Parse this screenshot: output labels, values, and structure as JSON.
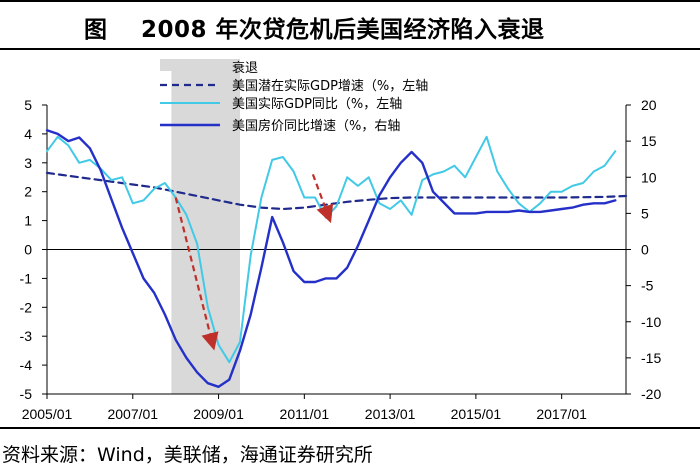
{
  "title": {
    "figure_label": "图",
    "text": "2008 年次贷危机后美国经济陷入衰退"
  },
  "source_note": "资料来源：Wind，美联储，海通证券研究所",
  "colors": {
    "potential_gdp": "#1f2a8c",
    "real_gdp": "#41c9e6",
    "house_price": "#2430c8",
    "recession_shade": "#d9d9d9",
    "arrows": "#c0302a"
  },
  "chart_data": {
    "type": "line",
    "title": "2008 年次贷危机后美国经济陷入衰退",
    "x_range": [
      2005.0,
      2018.5
    ],
    "x_ticks": [
      {
        "value": 2005.0,
        "label": "2005/01"
      },
      {
        "value": 2007.0,
        "label": "2007/01"
      },
      {
        "value": 2009.0,
        "label": "2009/01"
      },
      {
        "value": 2011.0,
        "label": "2011/01"
      },
      {
        "value": 2013.0,
        "label": "2013/01"
      },
      {
        "value": 2015.0,
        "label": "2015/01"
      },
      {
        "value": 2017.0,
        "label": "2017/01"
      }
    ],
    "y_left": {
      "min": -5,
      "max": 5,
      "ticks": [
        "5",
        "4",
        "3",
        "2",
        "1",
        "0",
        "-1",
        "-2",
        "-3",
        "-4",
        "-5"
      ]
    },
    "y_right": {
      "min": -20,
      "max": 20,
      "ticks": [
        "20",
        "15",
        "10",
        "5",
        "0",
        "-5",
        "-10",
        "-15",
        "-20"
      ]
    },
    "recession": {
      "label": "衰退",
      "start": 2007.9,
      "end": 2009.5
    },
    "legend": [
      "衰退",
      "美国潜在实际GDP增速（%，左轴",
      "美国实际GDP同比（%，左轴",
      "美国房价同比增速（%，右轴"
    ],
    "series": [
      {
        "name": "美国潜在实际GDP增速（%，左轴",
        "axis": "left",
        "style": "dashed",
        "x": [
          2005.0,
          2005.5,
          2006.0,
          2006.5,
          2007.0,
          2007.5,
          2008.0,
          2008.5,
          2009.0,
          2009.5,
          2010.0,
          2010.5,
          2011.0,
          2011.5,
          2012.0,
          2012.5,
          2013.0,
          2013.5,
          2014.0,
          2015.0,
          2016.0,
          2017.0,
          2018.0,
          2018.5
        ],
        "values": [
          2.65,
          2.55,
          2.45,
          2.35,
          2.25,
          2.15,
          2.0,
          1.85,
          1.7,
          1.55,
          1.45,
          1.4,
          1.45,
          1.55,
          1.65,
          1.72,
          1.78,
          1.8,
          1.8,
          1.8,
          1.8,
          1.8,
          1.82,
          1.85
        ]
      },
      {
        "name": "美国实际GDP同比（%，左轴",
        "axis": "left",
        "style": "solid",
        "x": [
          2005.0,
          2005.25,
          2005.5,
          2005.75,
          2006.0,
          2006.25,
          2006.5,
          2006.75,
          2007.0,
          2007.25,
          2007.5,
          2007.75,
          2008.0,
          2008.25,
          2008.5,
          2008.75,
          2009.0,
          2009.25,
          2009.5,
          2009.75,
          2010.0,
          2010.25,
          2010.5,
          2010.75,
          2011.0,
          2011.25,
          2011.5,
          2011.75,
          2012.0,
          2012.25,
          2012.5,
          2012.75,
          2013.0,
          2013.25,
          2013.5,
          2013.75,
          2014.0,
          2014.25,
          2014.5,
          2014.75,
          2015.0,
          2015.25,
          2015.5,
          2015.75,
          2016.0,
          2016.25,
          2016.5,
          2016.75,
          2017.0,
          2017.25,
          2017.5,
          2017.75,
          2018.0,
          2018.25
        ],
        "values": [
          3.4,
          3.9,
          3.6,
          3.0,
          3.1,
          2.8,
          2.4,
          2.5,
          1.6,
          1.7,
          2.1,
          2.3,
          1.8,
          1.2,
          0.2,
          -2.0,
          -3.3,
          -3.9,
          -3.2,
          -0.2,
          1.8,
          3.1,
          3.2,
          2.7,
          1.8,
          1.8,
          1.1,
          1.5,
          2.5,
          2.2,
          2.5,
          1.6,
          1.4,
          1.7,
          1.2,
          2.4,
          2.6,
          2.7,
          2.9,
          2.5,
          3.2,
          3.9,
          2.7,
          2.1,
          1.6,
          1.3,
          1.6,
          2.0,
          2.0,
          2.2,
          2.3,
          2.7,
          2.9,
          3.4
        ]
      },
      {
        "name": "美国房价同比增速（%，右轴",
        "axis": "right",
        "style": "solid",
        "x": [
          2005.0,
          2005.25,
          2005.5,
          2005.75,
          2006.0,
          2006.25,
          2006.5,
          2006.75,
          2007.0,
          2007.25,
          2007.5,
          2007.75,
          2008.0,
          2008.25,
          2008.5,
          2008.75,
          2009.0,
          2009.25,
          2009.5,
          2009.75,
          2010.0,
          2010.25,
          2010.5,
          2010.75,
          2011.0,
          2011.25,
          2011.5,
          2011.75,
          2012.0,
          2012.25,
          2012.5,
          2012.75,
          2013.0,
          2013.25,
          2013.5,
          2013.75,
          2014.0,
          2014.25,
          2014.5,
          2014.75,
          2015.0,
          2015.25,
          2015.5,
          2015.75,
          2016.0,
          2016.25,
          2016.5,
          2016.75,
          2017.0,
          2017.25,
          2017.5,
          2017.75,
          2018.0,
          2018.25
        ],
        "values": [
          16.5,
          16.0,
          15.0,
          15.5,
          14.0,
          11.0,
          7.0,
          3.0,
          -0.5,
          -4.0,
          -6.0,
          -9.0,
          -12.5,
          -15.0,
          -17.0,
          -18.5,
          -19.0,
          -18.0,
          -14.0,
          -9.0,
          -2.5,
          4.5,
          1.0,
          -3.0,
          -4.5,
          -4.5,
          -4.0,
          -4.0,
          -2.5,
          0.5,
          4.0,
          7.5,
          10.0,
          12.0,
          13.5,
          12.0,
          8.0,
          6.5,
          5.0,
          5.0,
          5.0,
          5.2,
          5.2,
          5.2,
          5.4,
          5.2,
          5.2,
          5.4,
          5.6,
          5.8,
          6.2,
          6.4,
          6.4,
          6.8
        ]
      }
    ],
    "annotations": [
      {
        "type": "arrow",
        "from": [
          2008.0,
          1.8
        ],
        "to": [
          2008.85,
          -3.2
        ],
        "axis": "left"
      },
      {
        "type": "arrow",
        "from": [
          2011.2,
          2.6
        ],
        "to": [
          2011.55,
          1.2
        ],
        "axis": "left"
      }
    ]
  }
}
